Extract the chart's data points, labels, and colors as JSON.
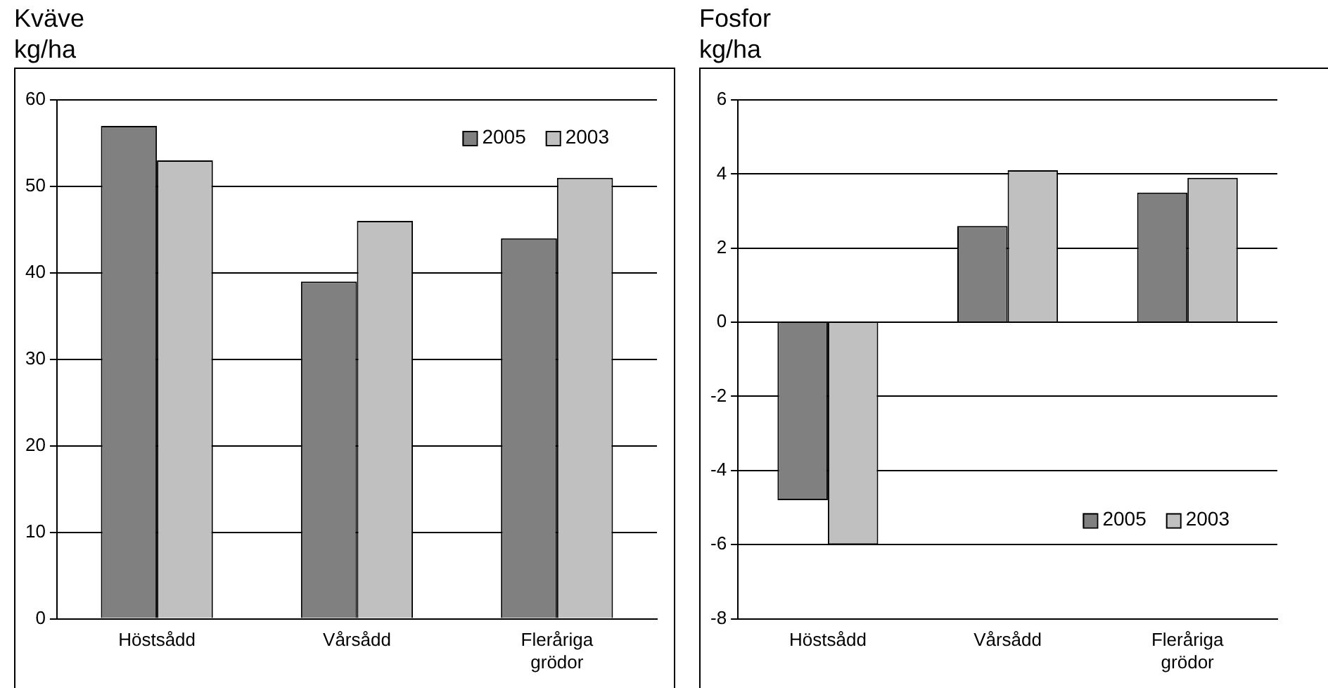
{
  "chart_data": [
    {
      "type": "bar",
      "title": "Kväve",
      "ylabel": "kg/ha",
      "categories": [
        "Höstsådd",
        "Vårsådd",
        "Fleråriga grödor"
      ],
      "series": [
        {
          "name": "2005",
          "color": "#808080",
          "values": [
            57,
            39,
            44
          ]
        },
        {
          "name": "2003",
          "color": "#c0c0c0",
          "values": [
            53,
            46,
            51
          ]
        }
      ],
      "ylim": [
        0,
        60
      ],
      "yticks": [
        0,
        10,
        20,
        30,
        40,
        50,
        60
      ],
      "grid": "y",
      "legend": "top right"
    },
    {
      "type": "bar",
      "title": "Fosfor",
      "ylabel": "kg/ha",
      "categories": [
        "Höstsådd",
        "Vårsådd",
        "Fleråriga grödor"
      ],
      "series": [
        {
          "name": "2005",
          "color": "#808080",
          "values": [
            -4.8,
            2.6,
            3.5
          ]
        },
        {
          "name": "2003",
          "color": "#c0c0c0",
          "values": [
            -6,
            4.1,
            3.9
          ]
        }
      ],
      "ylim": [
        -8,
        6
      ],
      "yticks": [
        -8,
        -6,
        -4,
        -2,
        0,
        2,
        4,
        6
      ],
      "grid": "y",
      "legend": "bottom right"
    }
  ]
}
